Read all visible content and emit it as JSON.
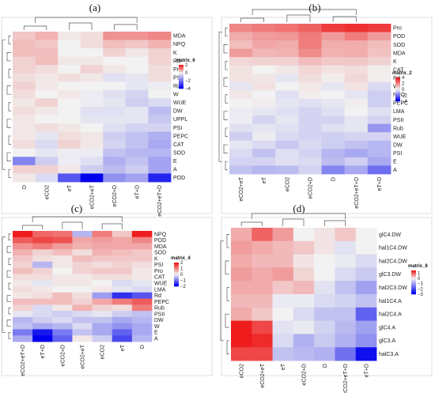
{
  "colors": {
    "low": "#0000ee",
    "mid": "#f2f2f2",
    "high": "#ee1c1c"
  },
  "chart_data": [
    {
      "type": "heatmap",
      "panel_label": "(a)",
      "legend_title": "matrix_6",
      "legend_ticks": [
        2,
        0,
        -2,
        -4
      ],
      "vmin": -4,
      "vmax": 2,
      "columns": [
        "D",
        "eCO2",
        "eT",
        "eCO2+eT",
        "eCO2+D",
        "eT+D",
        "eCO2+eT+D"
      ],
      "rows": [
        "MDA",
        "NPQ",
        "K",
        "Rd",
        "Pro",
        "PSII",
        "Rub",
        "W",
        "WUE",
        "DW",
        "UPPL",
        "PSI",
        "PEPC",
        "CAT",
        "SOD",
        "E",
        "A",
        "POD"
      ],
      "values": [
        [
          0.4,
          0.6,
          0.1,
          0.2,
          0.9,
          0.9,
          1.0
        ],
        [
          0.5,
          0.4,
          0.0,
          0.2,
          0.5,
          0.4,
          0.6
        ],
        [
          0.5,
          0.5,
          0.0,
          0.0,
          0.3,
          0.1,
          0.3
        ],
        [
          0.3,
          0.5,
          0.1,
          0.1,
          0.0,
          0.0,
          0.3
        ],
        [
          0.3,
          0.2,
          0.0,
          0.3,
          0.1,
          0.0,
          0.2
        ],
        [
          0.2,
          0.1,
          0.2,
          0.1,
          -0.3,
          -0.2,
          0.2
        ],
        [
          0.3,
          0.1,
          0.0,
          0.0,
          0.0,
          -0.2,
          -0.1
        ],
        [
          0.2,
          0.0,
          0.1,
          -0.1,
          -0.3,
          -0.5,
          0.0
        ],
        [
          0.1,
          0.3,
          0.0,
          -0.1,
          -0.2,
          -0.6,
          -0.4
        ],
        [
          0.2,
          0.1,
          0.0,
          -0.3,
          -0.3,
          -0.2,
          -0.9
        ],
        [
          0.1,
          0.0,
          0.0,
          -0.2,
          -0.2,
          -0.2,
          -0.7
        ],
        [
          0.1,
          0.2,
          0.1,
          0.0,
          -0.3,
          -0.5,
          -0.5
        ],
        [
          0.1,
          -0.2,
          0.2,
          0.1,
          -0.6,
          -0.8,
          -1.1
        ],
        [
          0.2,
          -0.4,
          0.3,
          0.1,
          -0.5,
          -0.8,
          -1.2
        ],
        [
          0.0,
          -0.2,
          -0.1,
          -0.1,
          -0.8,
          -1.0,
          -1.0
        ],
        [
          -1.8,
          -0.6,
          -0.1,
          -0.3,
          -1.1,
          -0.8,
          -1.3
        ],
        [
          0.3,
          0.3,
          0.1,
          -0.6,
          -0.9,
          -0.6,
          -1.3
        ],
        [
          0.1,
          -0.4,
          -2.6,
          -4.0,
          -1.6,
          -1.3,
          -3.4
        ]
      ]
    },
    {
      "type": "heatmap",
      "panel_label": "(b)",
      "legend_title": "matrix_2",
      "legend_ticks": [
        4,
        2,
        0,
        -2,
        -4
      ],
      "vmin": -4,
      "vmax": 4,
      "columns": [
        "eCO2+eT",
        "eT",
        "eCO2",
        "eCO2+D",
        "D",
        "eCO2+eT+D",
        "eT+D"
      ],
      "rows": [
        "Pro",
        "POD",
        "SOD",
        "MDA",
        "K",
        "CAT",
        "Rd",
        "W",
        "NPQ",
        "PEPC",
        "LMA",
        "PSII",
        "Rub",
        "WUE",
        "DW",
        "PSI",
        "E",
        "A"
      ],
      "values": [
        [
          2.0,
          2.2,
          2.4,
          2.7,
          3.4,
          3.6,
          3.4
        ],
        [
          1.3,
          1.6,
          1.7,
          2.2,
          1.6,
          2.2,
          1.6
        ],
        [
          1.0,
          1.4,
          1.3,
          2.2,
          1.3,
          1.3,
          1.0
        ],
        [
          1.6,
          1.1,
          1.2,
          1.9,
          1.2,
          1.3,
          0.9
        ],
        [
          0.5,
          0.6,
          0.6,
          1.0,
          0.8,
          0.8,
          0.6
        ],
        [
          0.3,
          0.0,
          0.2,
          0.5,
          0.3,
          0.4,
          0.1
        ],
        [
          0.3,
          0.2,
          -0.2,
          0.4,
          0.1,
          0.5,
          0.1
        ],
        [
          -0.2,
          0.3,
          0.0,
          0.2,
          -0.2,
          0.3,
          -0.4
        ],
        [
          0.2,
          0.0,
          -0.3,
          0.1,
          0.0,
          -0.2,
          -0.6
        ],
        [
          0.0,
          0.1,
          -0.2,
          -0.3,
          -0.2,
          0.1,
          -0.6
        ],
        [
          -0.1,
          -0.2,
          -0.3,
          -0.5,
          -0.3,
          0.0,
          -0.3
        ],
        [
          -0.1,
          -0.5,
          -0.2,
          -0.5,
          -0.5,
          -0.2,
          -0.5
        ],
        [
          -0.3,
          -0.2,
          -0.3,
          -0.5,
          -0.3,
          -0.2,
          -1.5
        ],
        [
          -0.6,
          -0.1,
          -0.4,
          -0.5,
          -0.6,
          -0.5,
          -0.5
        ],
        [
          -0.2,
          -0.4,
          -0.7,
          -0.4,
          -0.6,
          -0.8,
          -1.0
        ],
        [
          -0.4,
          -0.8,
          -0.3,
          -0.5,
          -1.0,
          -1.2,
          -1.0
        ],
        [
          -0.5,
          -0.5,
          -0.3,
          -0.4,
          -0.9,
          -0.6,
          -1.2
        ],
        [
          -0.8,
          -1.0,
          -0.9,
          -0.5,
          -1.8,
          -1.2,
          -2.2
        ]
      ]
    },
    {
      "type": "heatmap",
      "panel_label": "(c)",
      "legend_title": "matrix_4",
      "legend_ticks": [
        2,
        1,
        0,
        -1,
        -2
      ],
      "vmin": -2,
      "vmax": 2,
      "columns": [
        "eCO2+eT+D",
        "eT+D",
        "eCO2+D",
        "eCO2+eT",
        "eCO2",
        "eT",
        "D"
      ],
      "rows": [
        "NPQ",
        "POD",
        "MDA",
        "SOD",
        "K",
        "PSI",
        "Pro",
        "CAT",
        "WUE",
        "LMA",
        "Rd",
        "PEPC",
        "Rub",
        "PSII",
        "DW",
        "W",
        "E",
        "A"
      ],
      "values": [
        [
          2.0,
          1.3,
          1.2,
          -0.5,
          1.1,
          0.4,
          2.0
        ],
        [
          1.4,
          1.6,
          1.5,
          0.7,
          0.8,
          0.7,
          1.0
        ],
        [
          0.9,
          1.1,
          0.8,
          0.6,
          0.7,
          0.7,
          0.7
        ],
        [
          0.6,
          0.3,
          0.5,
          0.2,
          0.6,
          0.5,
          0.4
        ],
        [
          0.4,
          0.2,
          0.1,
          0.5,
          0.4,
          0.4,
          0.4
        ],
        [
          0.3,
          -0.5,
          0.1,
          0.3,
          0.2,
          0.3,
          0.2
        ],
        [
          0.5,
          0.3,
          0.0,
          0.3,
          0.4,
          0.4,
          0.1
        ],
        [
          0.2,
          0.2,
          0.1,
          0.1,
          0.2,
          0.2,
          0.1
        ],
        [
          0.1,
          -0.1,
          0.1,
          0.1,
          0.0,
          -0.2,
          -0.1
        ],
        [
          0.2,
          0.1,
          0.0,
          0.0,
          0.1,
          -0.1,
          -0.2
        ],
        [
          0.1,
          0.2,
          0.5,
          0.2,
          -0.7,
          -1.6,
          -1.3
        ],
        [
          0.5,
          0.5,
          0.5,
          0.3,
          0.7,
          1.1,
          1.4
        ],
        [
          0.3,
          -0.2,
          0.1,
          0.6,
          0.3,
          0.2,
          1.1
        ],
        [
          -0.1,
          -0.2,
          -0.3,
          -0.2,
          -0.1,
          -0.3,
          -0.4
        ],
        [
          -0.5,
          -0.3,
          -0.2,
          -0.4,
          -0.4,
          -0.6,
          -0.5
        ],
        [
          -0.4,
          -0.6,
          -0.5,
          -0.2,
          -0.6,
          -0.8,
          -0.6
        ],
        [
          -1.0,
          -1.8,
          -1.0,
          -0.4,
          -0.6,
          -1.2,
          -0.6
        ],
        [
          -0.6,
          -2.2,
          -1.2,
          0.1,
          -0.3,
          -1.4,
          -0.5
        ]
      ]
    },
    {
      "type": "heatmap",
      "panel_label": "(d)",
      "legend_title": "matrix_8",
      "legend_ticks": [
        1,
        0,
        -1,
        -2,
        -3
      ],
      "vmin": -3,
      "vmax": 1.5,
      "columns": [
        "eCO2",
        "eCO2+eT",
        "eT",
        "eCO2+D",
        "D",
        "eCO2+eT+D",
        "eT+D"
      ],
      "rows": [
        "glC4.DW",
        "hal1C4.DW",
        "hal2C4.DW",
        "glC3.DW",
        "hal2C3.DW",
        "hal1C4.A",
        "hal2C4.A",
        "glC4.A",
        "glC3.A",
        "halC3.A"
      ],
      "values": [
        [
          0.5,
          1.0,
          0.6,
          0.0,
          0.1,
          0.3,
          0.0
        ],
        [
          0.6,
          0.5,
          0.4,
          0.3,
          0.1,
          -0.2,
          0.0
        ],
        [
          0.5,
          0.4,
          0.4,
          0.1,
          0.0,
          -0.1,
          -0.3
        ],
        [
          0.6,
          0.5,
          0.6,
          0.2,
          0.0,
          -0.3,
          -0.5
        ],
        [
          0.5,
          0.5,
          0.3,
          0.4,
          -0.2,
          -0.6,
          -1.0
        ],
        [
          0.4,
          0.4,
          -0.1,
          -0.1,
          -0.3,
          -0.4,
          -0.6
        ],
        [
          0.5,
          0.3,
          0.0,
          -0.3,
          -0.6,
          -0.6,
          -1.8
        ],
        [
          1.6,
          1.2,
          -0.2,
          -0.1,
          -0.4,
          -0.7,
          -1.0
        ],
        [
          1.6,
          1.4,
          -0.3,
          -0.8,
          -0.5,
          -0.8,
          -1.2
        ],
        [
          1.2,
          1.2,
          -0.6,
          -0.7,
          -0.8,
          -1.6,
          -2.8
        ]
      ]
    }
  ]
}
